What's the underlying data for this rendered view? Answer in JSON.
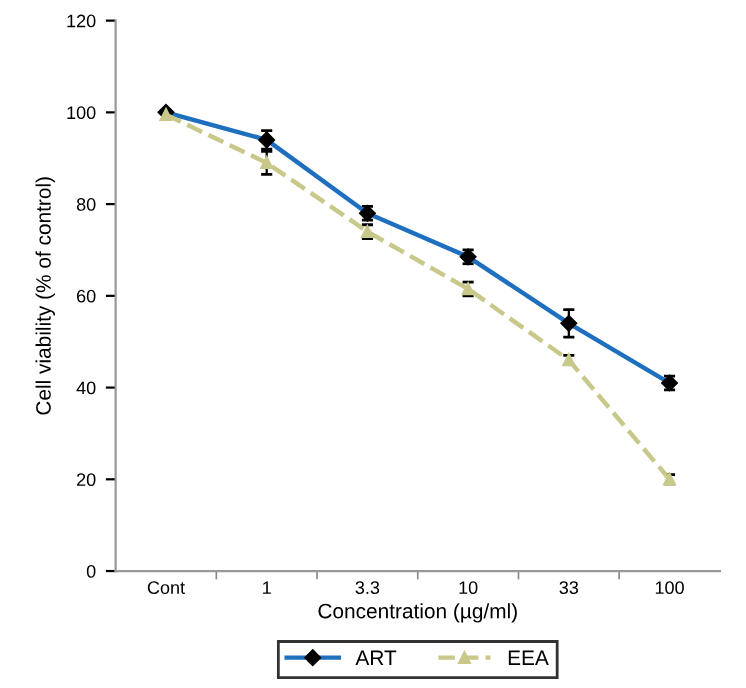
{
  "chart_data": {
    "type": "line",
    "xlabel": "Concentration (µg/ml)",
    "ylabel": "Cell viability (% of control)",
    "categories": [
      "Cont",
      "1",
      "3.3",
      "10",
      "33",
      "100"
    ],
    "ylim": [
      0,
      120
    ],
    "yticks": [
      0,
      20,
      40,
      60,
      80,
      100,
      120
    ],
    "grid": false,
    "legend": "bottom",
    "series": [
      {
        "name": "ART",
        "color": "#1f6fbf",
        "marker": "diamond",
        "line_style": "solid",
        "values": [
          100,
          94,
          78,
          68.5,
          54,
          41
        ],
        "errors": [
          null,
          2,
          1.5,
          1.5,
          3,
          1.5
        ]
      },
      {
        "name": "EEA",
        "color": "#c8c88a",
        "marker": "triangle",
        "line_style": "dashed",
        "values": [
          99.5,
          89,
          74,
          61.5,
          46,
          20
        ],
        "errors": [
          null,
          2.5,
          1.5,
          1.5,
          1,
          1
        ]
      }
    ]
  }
}
